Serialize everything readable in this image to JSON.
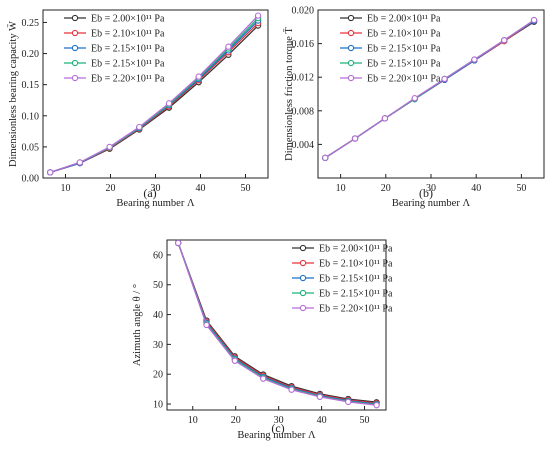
{
  "chart_data": [
    {
      "type": "line",
      "panel_label": "(a)",
      "xlabel": "Bearing number Λ",
      "ylabel": "Dimensionless bearing capacity W̄",
      "xlim": [
        5,
        55
      ],
      "ylim": [
        0,
        0.27
      ],
      "xticks": [
        "10",
        "20",
        "30",
        "40",
        "50"
      ],
      "yticks": [
        "0.00",
        "0.05",
        "0.10",
        "0.15",
        "0.20",
        "0.25"
      ],
      "x": [
        6.6,
        13.2,
        19.8,
        26.4,
        33.0,
        39.6,
        46.2,
        52.8
      ],
      "legend_position": "top-left",
      "series": [
        {
          "name": "Eb = 2.00×10¹¹ Pa",
          "color": "#333333",
          "values": [
            0.009,
            0.024,
            0.047,
            0.078,
            0.113,
            0.154,
            0.198,
            0.245
          ]
        },
        {
          "name": "Eb = 2.10×10¹¹ Pa",
          "color": "#e8323c",
          "values": [
            0.009,
            0.024,
            0.048,
            0.079,
            0.115,
            0.157,
            0.202,
            0.249
          ]
        },
        {
          "name": "Eb = 2.15×10¹¹ Pa",
          "color": "#1f6fc8",
          "values": [
            0.009,
            0.024,
            0.049,
            0.08,
            0.117,
            0.159,
            0.205,
            0.253
          ]
        },
        {
          "name": "Eb = 2.15×10¹¹ Pa",
          "color": "#1fb27a",
          "values": [
            0.009,
            0.025,
            0.049,
            0.081,
            0.118,
            0.161,
            0.208,
            0.257
          ]
        },
        {
          "name": "Eb = 2.20×10¹¹ Pa",
          "color": "#b66cd6",
          "values": [
            0.009,
            0.025,
            0.05,
            0.082,
            0.12,
            0.163,
            0.211,
            0.261
          ]
        }
      ]
    },
    {
      "type": "line",
      "panel_label": "(b)",
      "xlabel": "Bearing number Λ",
      "ylabel": "Dimensionless friction torque T̄",
      "xlim": [
        5,
        55
      ],
      "ylim": [
        0,
        0.02
      ],
      "xticks": [
        "10",
        "20",
        "30",
        "40",
        "50"
      ],
      "yticks": [
        "0.004",
        "0.008",
        "0.012",
        "0.016",
        "0.020"
      ],
      "x": [
        6.6,
        13.2,
        19.8,
        26.4,
        33.0,
        39.6,
        46.2,
        52.8
      ],
      "legend_position": "top-left",
      "series": [
        {
          "name": "Eb = 2.00×10¹¹ Pa",
          "color": "#333333",
          "values": [
            0.0024,
            0.0047,
            0.0071,
            0.0094,
            0.0117,
            0.014,
            0.0163,
            0.0186
          ]
        },
        {
          "name": "Eb = 2.10×10¹¹ Pa",
          "color": "#e8323c",
          "values": [
            0.0024,
            0.0047,
            0.0071,
            0.0094,
            0.0117,
            0.014,
            0.0163,
            0.0187
          ]
        },
        {
          "name": "Eb = 2.15×10¹¹ Pa",
          "color": "#1f6fc8",
          "values": [
            0.0024,
            0.0047,
            0.0071,
            0.0094,
            0.0117,
            0.014,
            0.0164,
            0.0187
          ]
        },
        {
          "name": "Eb = 2.15×10¹¹ Pa",
          "color": "#1fb27a",
          "values": [
            0.0024,
            0.0047,
            0.0071,
            0.0094,
            0.0118,
            0.0141,
            0.0164,
            0.0188
          ]
        },
        {
          "name": "Eb = 2.20×10¹¹ Pa",
          "color": "#b66cd6",
          "values": [
            0.0024,
            0.0047,
            0.0071,
            0.0095,
            0.0118,
            0.0141,
            0.0164,
            0.0188
          ]
        }
      ]
    },
    {
      "type": "line",
      "panel_label": "(c)",
      "xlabel": "Bearing number Λ",
      "ylabel": "Azimuth angle θ / °",
      "xlim": [
        4,
        55
      ],
      "ylim": [
        8,
        65
      ],
      "xticks": [
        "10",
        "20",
        "30",
        "40",
        "50"
      ],
      "yticks": [
        "10",
        "20",
        "30",
        "40",
        "50",
        "60"
      ],
      "x": [
        6.6,
        13.2,
        19.8,
        26.4,
        33.0,
        39.6,
        46.2,
        52.8
      ],
      "legend_position": "top-right",
      "series": [
        {
          "name": "Eb = 2.00×10¹¹ Pa",
          "color": "#333333",
          "values": [
            64.0,
            38.0,
            26.0,
            19.9,
            16.0,
            13.4,
            11.7,
            10.6
          ]
        },
        {
          "name": "Eb = 2.10×10¹¹ Pa",
          "color": "#e8323c",
          "values": [
            64.0,
            37.6,
            25.6,
            19.5,
            15.6,
            13.1,
            11.4,
            10.3
          ]
        },
        {
          "name": "Eb = 2.15×10¹¹ Pa",
          "color": "#1f6fc8",
          "values": [
            64.0,
            37.2,
            25.2,
            19.1,
            15.3,
            12.8,
            11.1,
            10.0
          ]
        },
        {
          "name": "Eb = 2.15×10¹¹ Pa",
          "color": "#1fb27a",
          "values": [
            64.0,
            36.9,
            24.9,
            18.8,
            15.0,
            12.6,
            10.9,
            9.8
          ]
        },
        {
          "name": "Eb = 2.20×10¹¹ Pa",
          "color": "#b66cd6",
          "values": [
            64.0,
            36.5,
            24.5,
            18.5,
            14.8,
            12.4,
            10.7,
            9.6
          ]
        }
      ]
    }
  ]
}
